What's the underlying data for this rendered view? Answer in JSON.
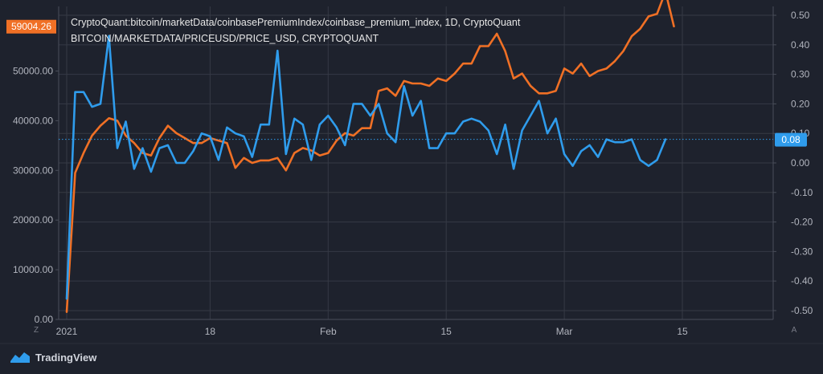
{
  "chart_data": {
    "type": "line",
    "legend_lines": [
      "CryptoQuant:bitcoin/marketData/coinbasePremiumIndex/coinbase_premium_index, 1D, CryptoQuant",
      "BITCOIN/MARKETDATA/PRICEUSD/PRICE_USD, CRYPTOQUANT"
    ],
    "x_ticks": [
      {
        "day": 0,
        "label": "2021"
      },
      {
        "day": 17,
        "label": "18"
      },
      {
        "day": 31,
        "label": "Feb"
      },
      {
        "day": 45,
        "label": "15"
      },
      {
        "day": 59,
        "label": "Mar"
      },
      {
        "day": 73,
        "label": "15"
      }
    ],
    "x_range": [
      0,
      73
    ],
    "left_axis": {
      "range": [
        0,
        63000
      ],
      "ticks": [
        "0.00",
        "10000.00",
        "20000.00",
        "30000.00",
        "40000.00",
        "50000.00"
      ],
      "current_value_label": "59004.26",
      "current_value": 59004.26
    },
    "right_axis": {
      "range": [
        -0.53,
        0.53
      ],
      "ticks": [
        "0.50",
        "0.40",
        "0.30",
        "0.20",
        "0.10",
        "0.00",
        "-0.10",
        "-0.20",
        "-0.30",
        "-0.40",
        "-0.50"
      ],
      "current_value_label": "0.08",
      "current_value": 0.08
    },
    "series": [
      {
        "axis": "left",
        "color": "#f07025",
        "values": [
          1500,
          29500,
          33500,
          37000,
          39000,
          40500,
          40000,
          37000,
          35500,
          33500,
          33000,
          36500,
          39000,
          37500,
          36500,
          35500,
          35500,
          36500,
          36000,
          35500,
          30500,
          32500,
          31500,
          32000,
          32000,
          32500,
          30000,
          33500,
          34500,
          34000,
          33000,
          33500,
          36000,
          37500,
          37000,
          38500,
          38500,
          46000,
          46500,
          45000,
          48000,
          47500,
          47500,
          47000,
          48500,
          48000,
          49500,
          51500,
          51500,
          55000,
          55000,
          57500,
          54000,
          48500,
          49500,
          47000,
          45500,
          45500,
          46000,
          50500,
          49500,
          51500,
          49000,
          50000,
          50500,
          52000,
          54000,
          57000,
          58500,
          61000,
          61500,
          66000,
          59000
        ]
      },
      {
        "axis": "right",
        "color": "#2f9cec",
        "values": [
          -0.46,
          0.24,
          0.24,
          0.19,
          0.2,
          0.43,
          0.05,
          0.14,
          -0.02,
          0.05,
          -0.03,
          0.05,
          0.06,
          0.0,
          0.0,
          0.04,
          0.1,
          0.09,
          0.01,
          0.12,
          0.1,
          0.09,
          0.02,
          0.13,
          0.13,
          0.38,
          0.03,
          0.15,
          0.13,
          0.01,
          0.13,
          0.16,
          0.12,
          0.06,
          0.2,
          0.2,
          0.16,
          0.2,
          0.1,
          0.07,
          0.26,
          0.16,
          0.21,
          0.05,
          0.05,
          0.1,
          0.1,
          0.14,
          0.15,
          0.14,
          0.11,
          0.03,
          0.13,
          -0.02,
          0.11,
          0.16,
          0.21,
          0.1,
          0.15,
          0.03,
          -0.01,
          0.04,
          0.06,
          0.02,
          0.08,
          0.07,
          0.07,
          0.08,
          0.01,
          -0.01,
          0.01,
          0.08
        ]
      }
    ],
    "grid": true
  },
  "corner": {
    "left_label": "Z",
    "right_label": "A"
  },
  "brand": {
    "name": "TradingView"
  }
}
